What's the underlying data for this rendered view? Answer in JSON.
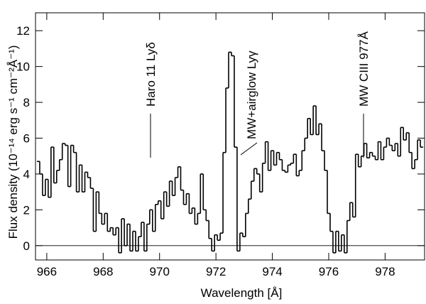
{
  "chart_data": {
    "type": "step",
    "x_label": "Wavelength [Å]",
    "y_label": "Flux density (10⁻¹⁴ erg s⁻¹ cm⁻²Å⁻¹)",
    "annotations": [
      "Haro 11 Lyδ",
      "MW+airglow Lyγ",
      "MW CIII 977Å"
    ],
    "xlim": [
      965.6,
      979.4
    ],
    "ylim": [
      -0.8,
      13
    ],
    "xticks": [
      966,
      968,
      970,
      972,
      974,
      976,
      978
    ],
    "yticks": [
      0,
      2,
      4,
      6,
      8,
      10,
      12
    ],
    "color": "#000000",
    "x": [
      965.7,
      965.8,
      965.9,
      966.0,
      966.1,
      966.2,
      966.3,
      966.4,
      966.5,
      966.6,
      966.7,
      966.8,
      966.9,
      967.0,
      967.1,
      967.2,
      967.3,
      967.4,
      967.5,
      967.6,
      967.7,
      967.8,
      967.9,
      968.0,
      968.1,
      968.2,
      968.3,
      968.4,
      968.5,
      968.6,
      968.7,
      968.8,
      968.9,
      969.0,
      969.1,
      969.2,
      969.3,
      969.4,
      969.5,
      969.6,
      969.7,
      969.8,
      969.9,
      970.0,
      970.1,
      970.2,
      970.3,
      970.4,
      970.5,
      970.6,
      970.7,
      970.8,
      970.9,
      971.0,
      971.1,
      971.2,
      971.3,
      971.4,
      971.5,
      971.6,
      971.7,
      971.8,
      971.9,
      972.0,
      972.1,
      972.2,
      972.3,
      972.4,
      972.5,
      972.6,
      972.7,
      972.8,
      972.9,
      973.0,
      973.1,
      973.2,
      973.3,
      973.4,
      973.5,
      973.6,
      973.7,
      973.8,
      973.9,
      974.0,
      974.1,
      974.2,
      974.3,
      974.4,
      974.5,
      974.6,
      974.7,
      974.8,
      974.9,
      975.0,
      975.1,
      975.2,
      975.3,
      975.4,
      975.5,
      975.6,
      975.7,
      975.8,
      975.9,
      976.0,
      976.1,
      976.2,
      976.3,
      976.4,
      976.5,
      976.6,
      976.7,
      976.8,
      976.9,
      977.0,
      977.1,
      977.2,
      977.3,
      977.4,
      977.5,
      977.6,
      977.7,
      977.8,
      977.9,
      978.0,
      978.1,
      978.2,
      978.3,
      978.4,
      978.5,
      978.6,
      978.7,
      978.8,
      978.9,
      979.0,
      979.1,
      979.2,
      979.3
    ],
    "values": [
      4.7,
      4.0,
      2.8,
      3.7,
      2.7,
      5.5,
      3.5,
      4.2,
      4.8,
      5.7,
      5.6,
      3.3,
      5.6,
      5.2,
      3.0,
      4.5,
      3.0,
      4.1,
      3.8,
      3.2,
      0.8,
      3.0,
      1.8,
      1.2,
      1.8,
      0.8,
      1.0,
      0.6,
      1.0,
      -0.4,
      1.5,
      0.0,
      1.2,
      -0.3,
      0.8,
      -0.3,
      0.5,
      1.3,
      -0.3,
      1.2,
      2.0,
      0.8,
      2.3,
      2.5,
      1.5,
      3.0,
      2.2,
      3.6,
      2.8,
      3.8,
      4.4,
      3.1,
      2.3,
      2.9,
      1.8,
      2.1,
      1.2,
      1.8,
      4.0,
      2.0,
      1.4,
      0.4,
      -0.3,
      0.6,
      0.3,
      0.7,
      5.2,
      8.8,
      10.8,
      10.6,
      5.5,
      -0.3,
      0.7,
      0.5,
      1.8,
      2.6,
      3.6,
      4.3,
      4.0,
      3.0,
      4.6,
      5.8,
      4.2,
      5.3,
      4.5,
      5.2,
      4.8,
      4.2,
      4.1,
      4.5,
      4.6,
      5.1,
      3.9,
      4.2,
      5.3,
      6.0,
      7.1,
      6.2,
      7.8,
      6.2,
      6.8,
      5.3,
      4.2,
      1.8,
      0.8,
      -0.4,
      0.8,
      -0.3,
      0.6,
      -0.4,
      1.4,
      2.4,
      1.6,
      5.1,
      4.4,
      5.0,
      5.7,
      4.9,
      5.2,
      5.0,
      4.8,
      5.8,
      4.8,
      5.5,
      6.0,
      5.6,
      5.3,
      5.7,
      5.0,
      6.6,
      5.9,
      6.3,
      5.2,
      4.3,
      4.8,
      5.9,
      5.5
    ]
  }
}
